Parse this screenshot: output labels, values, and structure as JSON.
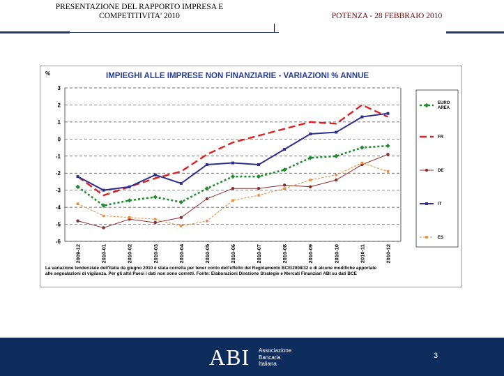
{
  "header": {
    "left_line1": "PRESENTAZIONE DEL RAPPORTO IMPRESA E",
    "left_line2": "COMPETITIVITA' 2010",
    "right": "POTENZA  - 28 FEBBRAIO 2010"
  },
  "chart_data": {
    "type": "line",
    "title": "IMPIEGHI ALLE IMPRESE NON FINANZIARIE - VARIAZIONI % ANNUE",
    "ylabel": "%",
    "ylim": [
      -6,
      3
    ],
    "yticks": [
      "3",
      "2",
      "1",
      "0",
      "-1",
      "-2",
      "-3",
      "-4",
      "-5",
      "-6"
    ],
    "categories": [
      "2009-12",
      "2010-01",
      "2010-02",
      "2010-03",
      "2010-04",
      "2010-05",
      "2010-06",
      "2010-07",
      "2010-08",
      "2010-09",
      "2010-10",
      "2010-11",
      "2010-12"
    ],
    "grid": "horizontal dashed",
    "legend_position": "right",
    "series": [
      {
        "name": "EURO AREA",
        "color": "#1f8a2e",
        "values": [
          -2.8,
          -3.9,
          -3.6,
          -3.4,
          -3.7,
          -2.9,
          -2.2,
          -2.2,
          -1.8,
          -1.1,
          -1.0,
          -0.5,
          -0.4
        ]
      },
      {
        "name": "FR",
        "color": "#e02020",
        "values": [
          -2.2,
          -3.3,
          -2.8,
          -2.3,
          -1.9,
          -0.9,
          -0.2,
          0.2,
          0.6,
          1.0,
          0.9,
          2.0,
          1.3
        ]
      },
      {
        "name": "DE",
        "color": "#8b2a2a",
        "values": [
          -4.8,
          -5.2,
          -4.7,
          -4.9,
          -4.6,
          -3.5,
          -2.9,
          -2.9,
          -2.7,
          -2.8,
          -2.4,
          -1.5,
          -0.9
        ]
      },
      {
        "name": "IT",
        "color": "#2c2f8c",
        "values": [
          -2.2,
          -3.0,
          -2.8,
          -2.1,
          -2.6,
          -1.5,
          -1.4,
          -1.5,
          -0.6,
          0.3,
          0.4,
          1.3,
          1.5
        ]
      },
      {
        "name": "ES",
        "color": "#f08a3c",
        "values": [
          -3.8,
          -4.5,
          -4.6,
          -4.7,
          -5.1,
          -4.8,
          -3.6,
          -3.3,
          -2.9,
          -2.4,
          -2.1,
          -1.4,
          -1.9
        ]
      }
    ],
    "note": "La variazione tendenziale dell'Italia da giugno  2010 è stata corretta per tener conto dell'effetto del Regolamento BCE/2008/32 e di alcune modifiche apportate alle segnalazioni di vigilanza. Per gli altri Paesi i dati non sono corretti. Fonte: Elaborazioni Direzione Strategie e Mercati Finanziari ABI su dati BCE"
  },
  "footer": {
    "logo": "ABI",
    "org_line1": "Associazione",
    "org_line2": "Bancaria",
    "org_line3": "Italiana",
    "page_number": "3"
  },
  "colors": {
    "footer_bg": "#0f2d5c",
    "chart_frame": "#9a9a9a",
    "title_blue": "#2a3f9a"
  }
}
